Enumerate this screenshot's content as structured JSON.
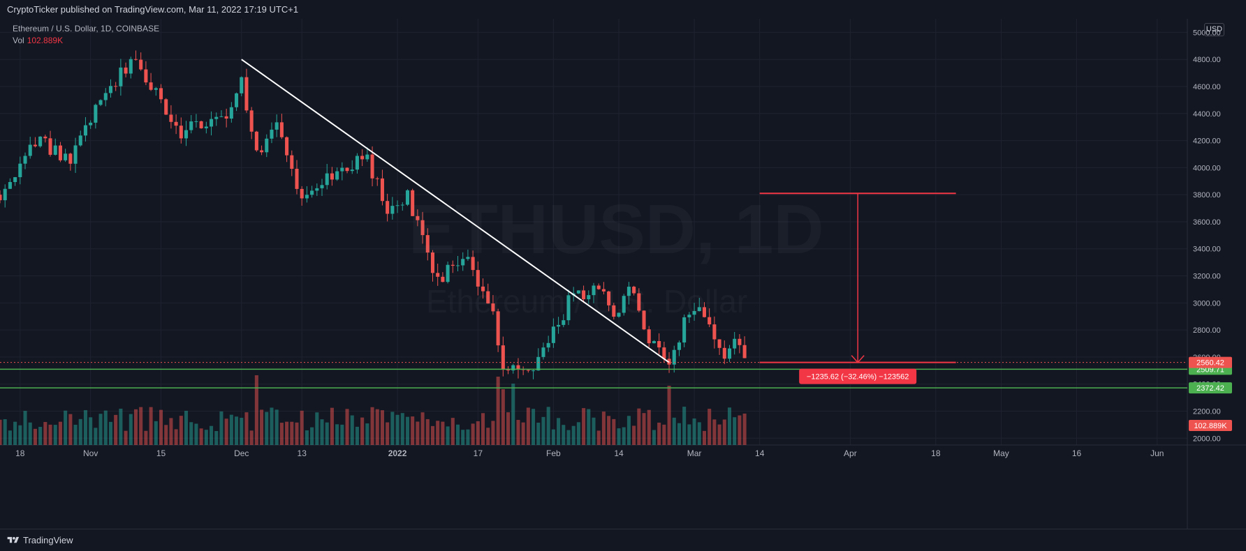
{
  "header": {
    "published_by": "CryptoTicker published on TradingView.com, Mar 11, 2022 17:19 UTC+1"
  },
  "legend": {
    "symbol": "Ethereum / U.S. Dollar, 1D, COINBASE",
    "vol_label": "Vol",
    "vol_value": "102.889K"
  },
  "currency": "USD",
  "watermark": {
    "main": "ETHUSD, 1D",
    "sub": "Ethereum / U.S. Dollar"
  },
  "footer": {
    "brand": "TradingView",
    "logo_icon": "tradingview-logo-icon"
  },
  "colors": {
    "background": "#131722",
    "up": "#26a69a",
    "down": "#ef5350",
    "trendline": "#ffffff",
    "support": "#4caf50",
    "measure": "#f23645",
    "grid": "#1f2330",
    "axis_text": "#b2b5be"
  },
  "chart_data": {
    "type": "candlestick",
    "symbol": "ETHUSD",
    "interval": "1D",
    "exchange": "COINBASE",
    "x_range": [
      "2021-10-14",
      "2022-06-07"
    ],
    "y_range": [
      1950,
      5100
    ],
    "grid": true,
    "x_ticks": [
      {
        "date": "2021-10-18",
        "label": "18"
      },
      {
        "date": "2021-11-01",
        "label": "Nov"
      },
      {
        "date": "2021-11-15",
        "label": "15"
      },
      {
        "date": "2021-12-01",
        "label": "Dec"
      },
      {
        "date": "2021-12-13",
        "label": "13"
      },
      {
        "date": "2022-01-01",
        "label": "2022"
      },
      {
        "date": "2022-01-17",
        "label": "17"
      },
      {
        "date": "2022-02-01",
        "label": "Feb"
      },
      {
        "date": "2022-02-14",
        "label": "14"
      },
      {
        "date": "2022-03-01",
        "label": "Mar"
      },
      {
        "date": "2022-03-14",
        "label": "14"
      },
      {
        "date": "2022-04-01",
        "label": "Apr"
      },
      {
        "date": "2022-04-18",
        "label": "18"
      },
      {
        "date": "2022-05-01",
        "label": "May"
      },
      {
        "date": "2022-05-16",
        "label": "16"
      },
      {
        "date": "2022-06-01",
        "label": "Jun"
      }
    ],
    "y_ticks": [
      {
        "value": 2000,
        "label": "2000.00"
      },
      {
        "value": 2200,
        "label": "2200.00"
      },
      {
        "value": 2400,
        "label": "2400.00"
      },
      {
        "value": 2600,
        "label": "2600.00"
      },
      {
        "value": 2800,
        "label": "2800.00"
      },
      {
        "value": 3000,
        "label": "3000.00"
      },
      {
        "value": 3200,
        "label": "3200.00"
      },
      {
        "value": 3400,
        "label": "3400.00"
      },
      {
        "value": 3600,
        "label": "3600.00"
      },
      {
        "value": 3800,
        "label": "3800.00"
      },
      {
        "value": 4000,
        "label": "4000.00"
      },
      {
        "value": 4200,
        "label": "4200.00"
      },
      {
        "value": 4400,
        "label": "4400.00"
      },
      {
        "value": 4600,
        "label": "4600.00"
      },
      {
        "value": 4800,
        "label": "4800.00"
      },
      {
        "value": 5000,
        "label": "5000.00"
      }
    ],
    "segments": [
      {
        "date": "2021-10-14",
        "price": 3800
      },
      {
        "date": "2021-10-21",
        "price": 4200
      },
      {
        "date": "2021-10-28",
        "price": 4050
      },
      {
        "date": "2021-11-03",
        "price": 4550
      },
      {
        "date": "2021-11-10",
        "price": 4780
      },
      {
        "date": "2021-11-19",
        "price": 4250
      },
      {
        "date": "2021-11-24",
        "price": 4350
      },
      {
        "date": "2021-11-29",
        "price": 4400
      },
      {
        "date": "2021-12-01",
        "price": 4620
      },
      {
        "date": "2021-12-04",
        "price": 4100
      },
      {
        "date": "2021-12-08",
        "price": 4330
      },
      {
        "date": "2021-12-13",
        "price": 3780
      },
      {
        "date": "2021-12-20",
        "price": 3950
      },
      {
        "date": "2021-12-26",
        "price": 4070
      },
      {
        "date": "2021-12-30",
        "price": 3700
      },
      {
        "date": "2022-01-03",
        "price": 3800
      },
      {
        "date": "2022-01-09",
        "price": 3150
      },
      {
        "date": "2022-01-14",
        "price": 3350
      },
      {
        "date": "2022-01-19",
        "price": 3050
      },
      {
        "date": "2022-01-22",
        "price": 2550
      },
      {
        "date": "2022-01-26",
        "price": 2450
      },
      {
        "date": "2022-01-31",
        "price": 2700
      },
      {
        "date": "2022-02-04",
        "price": 3000
      },
      {
        "date": "2022-02-10",
        "price": 3150
      },
      {
        "date": "2022-02-13",
        "price": 2900
      },
      {
        "date": "2022-02-16",
        "price": 3150
      },
      {
        "date": "2022-02-20",
        "price": 2750
      },
      {
        "date": "2022-02-24",
        "price": 2590
      },
      {
        "date": "2022-02-28",
        "price": 2920
      },
      {
        "date": "2022-03-02",
        "price": 2950
      },
      {
        "date": "2022-03-07",
        "price": 2550
      },
      {
        "date": "2022-03-09",
        "price": 2720
      },
      {
        "date": "2022-03-11",
        "price": 2560
      }
    ],
    "volume": {
      "seed": 20211014,
      "spikes": [
        {
          "date": "2021-12-04",
          "value": 1.0
        },
        {
          "date": "2022-01-21",
          "value": 0.98
        },
        {
          "date": "2022-01-22",
          "value": 0.8
        },
        {
          "date": "2022-01-24",
          "value": 0.88
        },
        {
          "date": "2022-02-24",
          "value": 0.85
        }
      ]
    },
    "trendline": {
      "start": {
        "date": "2021-12-01",
        "price": 4800
      },
      "end": {
        "date": "2022-02-24",
        "price": 2560
      }
    },
    "support_lines": [
      {
        "price": 2509.71,
        "label": "2509.71"
      },
      {
        "price": 2372.42,
        "label": "2372.42"
      }
    ],
    "current_price": {
      "price": 2560.42,
      "label": "2560.42"
    },
    "volume_label": "102.889K",
    "measure": {
      "from": {
        "date": "2022-03-14",
        "price": 3810
      },
      "to": {
        "date": "2022-04-22",
        "price": 2560
      },
      "label": "−1235.62 (−32.46%) −123562"
    }
  }
}
